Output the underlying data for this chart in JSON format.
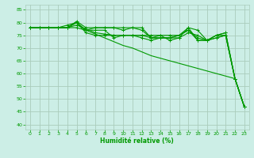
{
  "title": "",
  "xlabel": "Humidité relative (%)",
  "background_color": "#cceee6",
  "grid_color": "#aaccbb",
  "line_color": "#009900",
  "xlim": [
    -0.5,
    23.5
  ],
  "ylim": [
    38,
    87
  ],
  "yticks": [
    40,
    45,
    50,
    55,
    60,
    65,
    70,
    75,
    80,
    85
  ],
  "xticks": [
    0,
    1,
    2,
    3,
    4,
    5,
    6,
    7,
    8,
    9,
    10,
    11,
    12,
    13,
    14,
    15,
    16,
    17,
    18,
    19,
    20,
    21,
    22,
    23
  ],
  "series": [
    [
      78,
      78,
      78,
      78,
      78,
      80.5,
      78,
      78,
      78,
      78,
      78,
      78,
      78,
      74,
      74,
      74,
      75,
      78,
      77,
      73,
      75,
      76,
      58,
      47
    ],
    [
      78,
      78,
      78,
      78,
      79,
      80,
      76,
      75,
      75,
      75,
      75,
      75,
      75,
      75,
      75,
      73,
      74,
      76,
      75,
      73,
      75,
      76,
      58,
      47
    ],
    [
      78,
      78,
      78,
      78,
      78,
      78,
      77,
      78,
      78,
      78,
      77,
      78,
      77,
      74,
      75,
      75,
      75,
      77,
      74,
      73,
      75,
      75,
      58,
      47
    ],
    [
      78,
      78,
      78,
      78,
      78,
      80,
      77,
      77,
      77,
      74,
      75,
      75,
      74,
      73,
      74,
      74,
      74,
      78,
      73,
      73,
      74,
      75,
      58,
      47
    ],
    [
      78,
      78,
      78,
      78,
      78,
      79,
      77.5,
      76,
      75.5,
      75,
      75,
      75,
      75,
      74,
      74,
      74,
      75,
      77,
      73,
      73,
      74,
      75,
      58,
      47
    ]
  ],
  "diag_series": [
    78,
    78,
    78,
    78,
    78,
    80,
    77,
    75.5,
    74,
    72.5,
    71,
    70,
    68.5,
    67,
    66,
    65,
    64,
    63,
    62,
    61,
    60,
    59,
    58,
    47
  ]
}
